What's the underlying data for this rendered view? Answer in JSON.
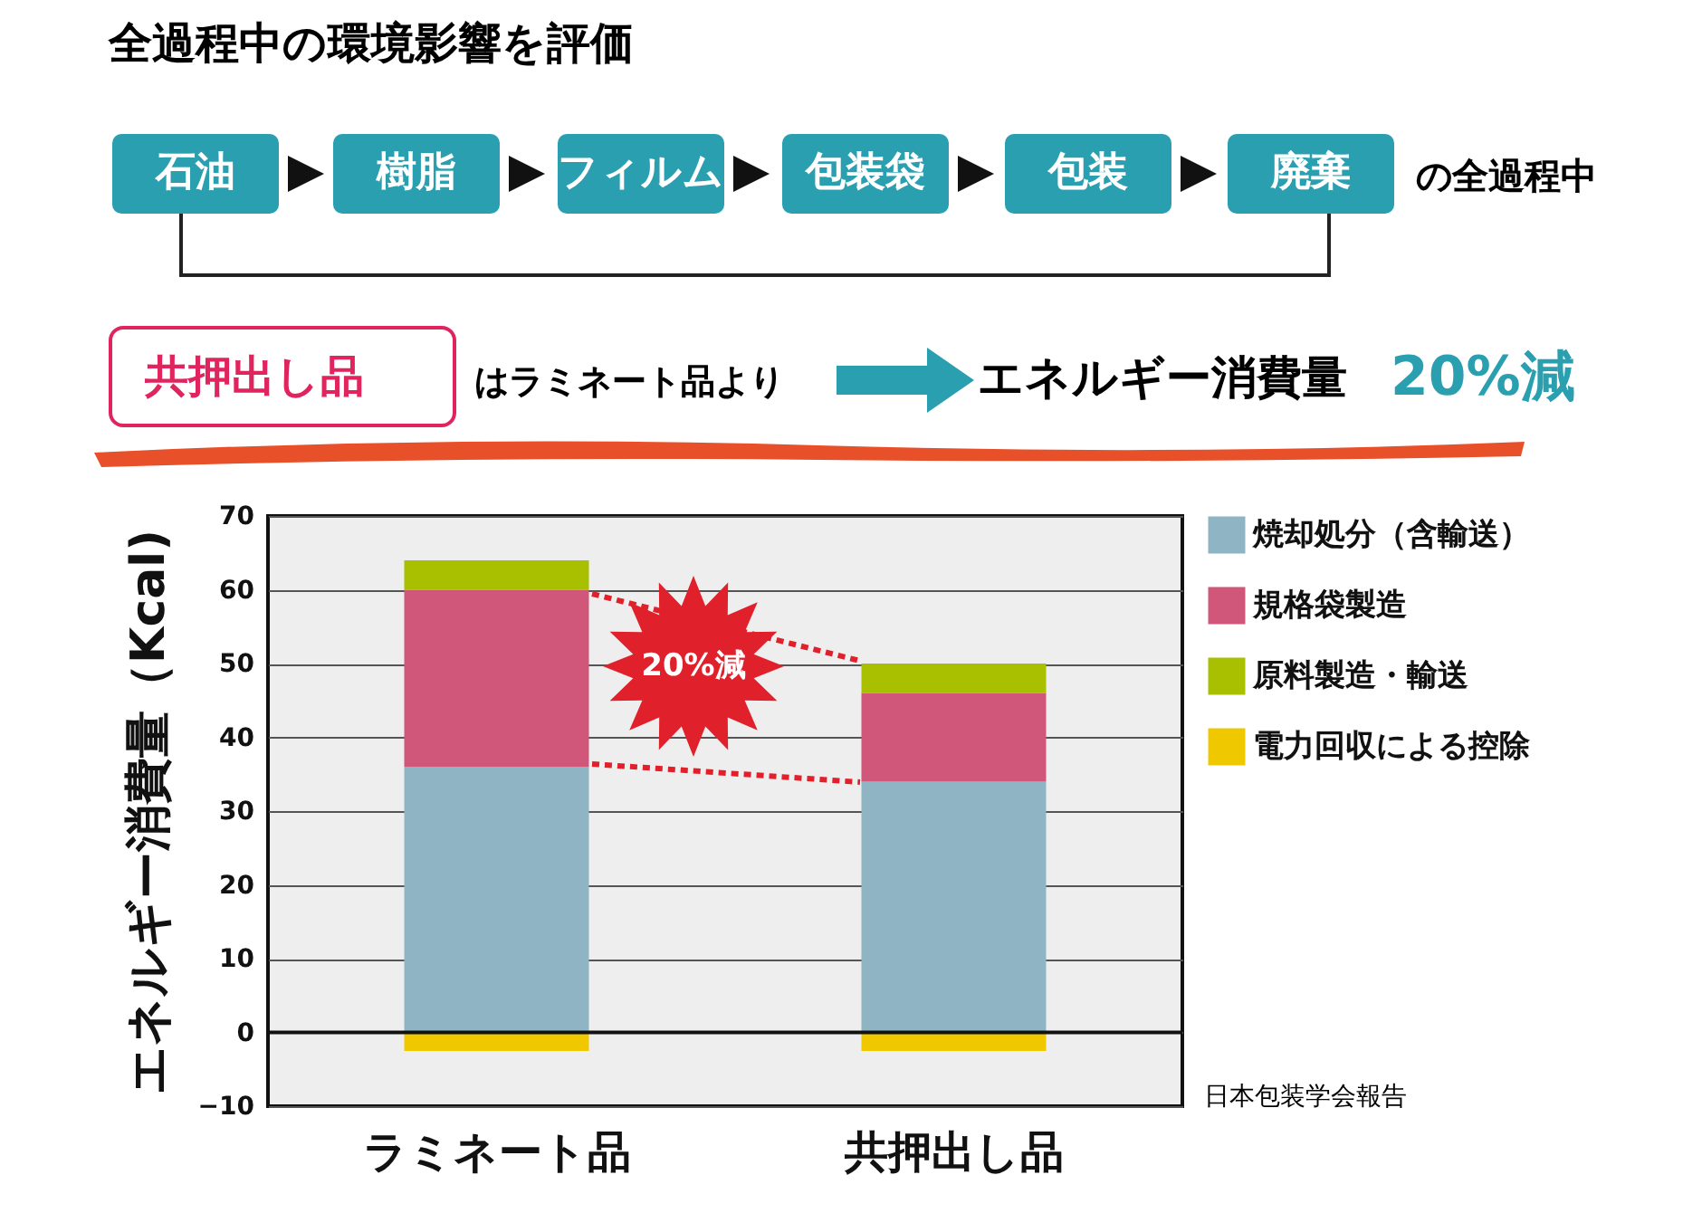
{
  "chart_data": {
    "type": "bar",
    "title": "全過程中の環境影響を評価",
    "ylabel": "エネルギー消費量（Kcal)",
    "categories": [
      "ラミネート品",
      "共押出し品"
    ],
    "stacked": true,
    "series": [
      {
        "name": "焼却処分（含輸送）",
        "color": "#8fb4c4",
        "values": [
          36,
          34
        ]
      },
      {
        "name": "規格袋製造",
        "color": "#d0567a",
        "values": [
          24,
          12
        ]
      },
      {
        "name": "原料製造・輸送",
        "color": "#a8c000",
        "values": [
          4,
          4
        ]
      },
      {
        "name": "電力回収による控除",
        "color": "#f0c800",
        "values": [
          -2.5,
          -2.5
        ]
      }
    ],
    "ylim": [
      -10,
      70
    ],
    "yticks": [
      -10,
      0,
      10,
      20,
      30,
      40,
      50,
      60,
      70
    ],
    "grid": "y",
    "legend": "top right",
    "annotations": [
      "石油",
      "樹脂",
      "フィルム",
      "包装袋",
      "包装",
      "廃棄",
      "の全過程中",
      "共押出し品",
      "はラミネート品より",
      "エネルギー消費量",
      "20%減",
      "20%減",
      "日本包装学会報告"
    ]
  }
}
